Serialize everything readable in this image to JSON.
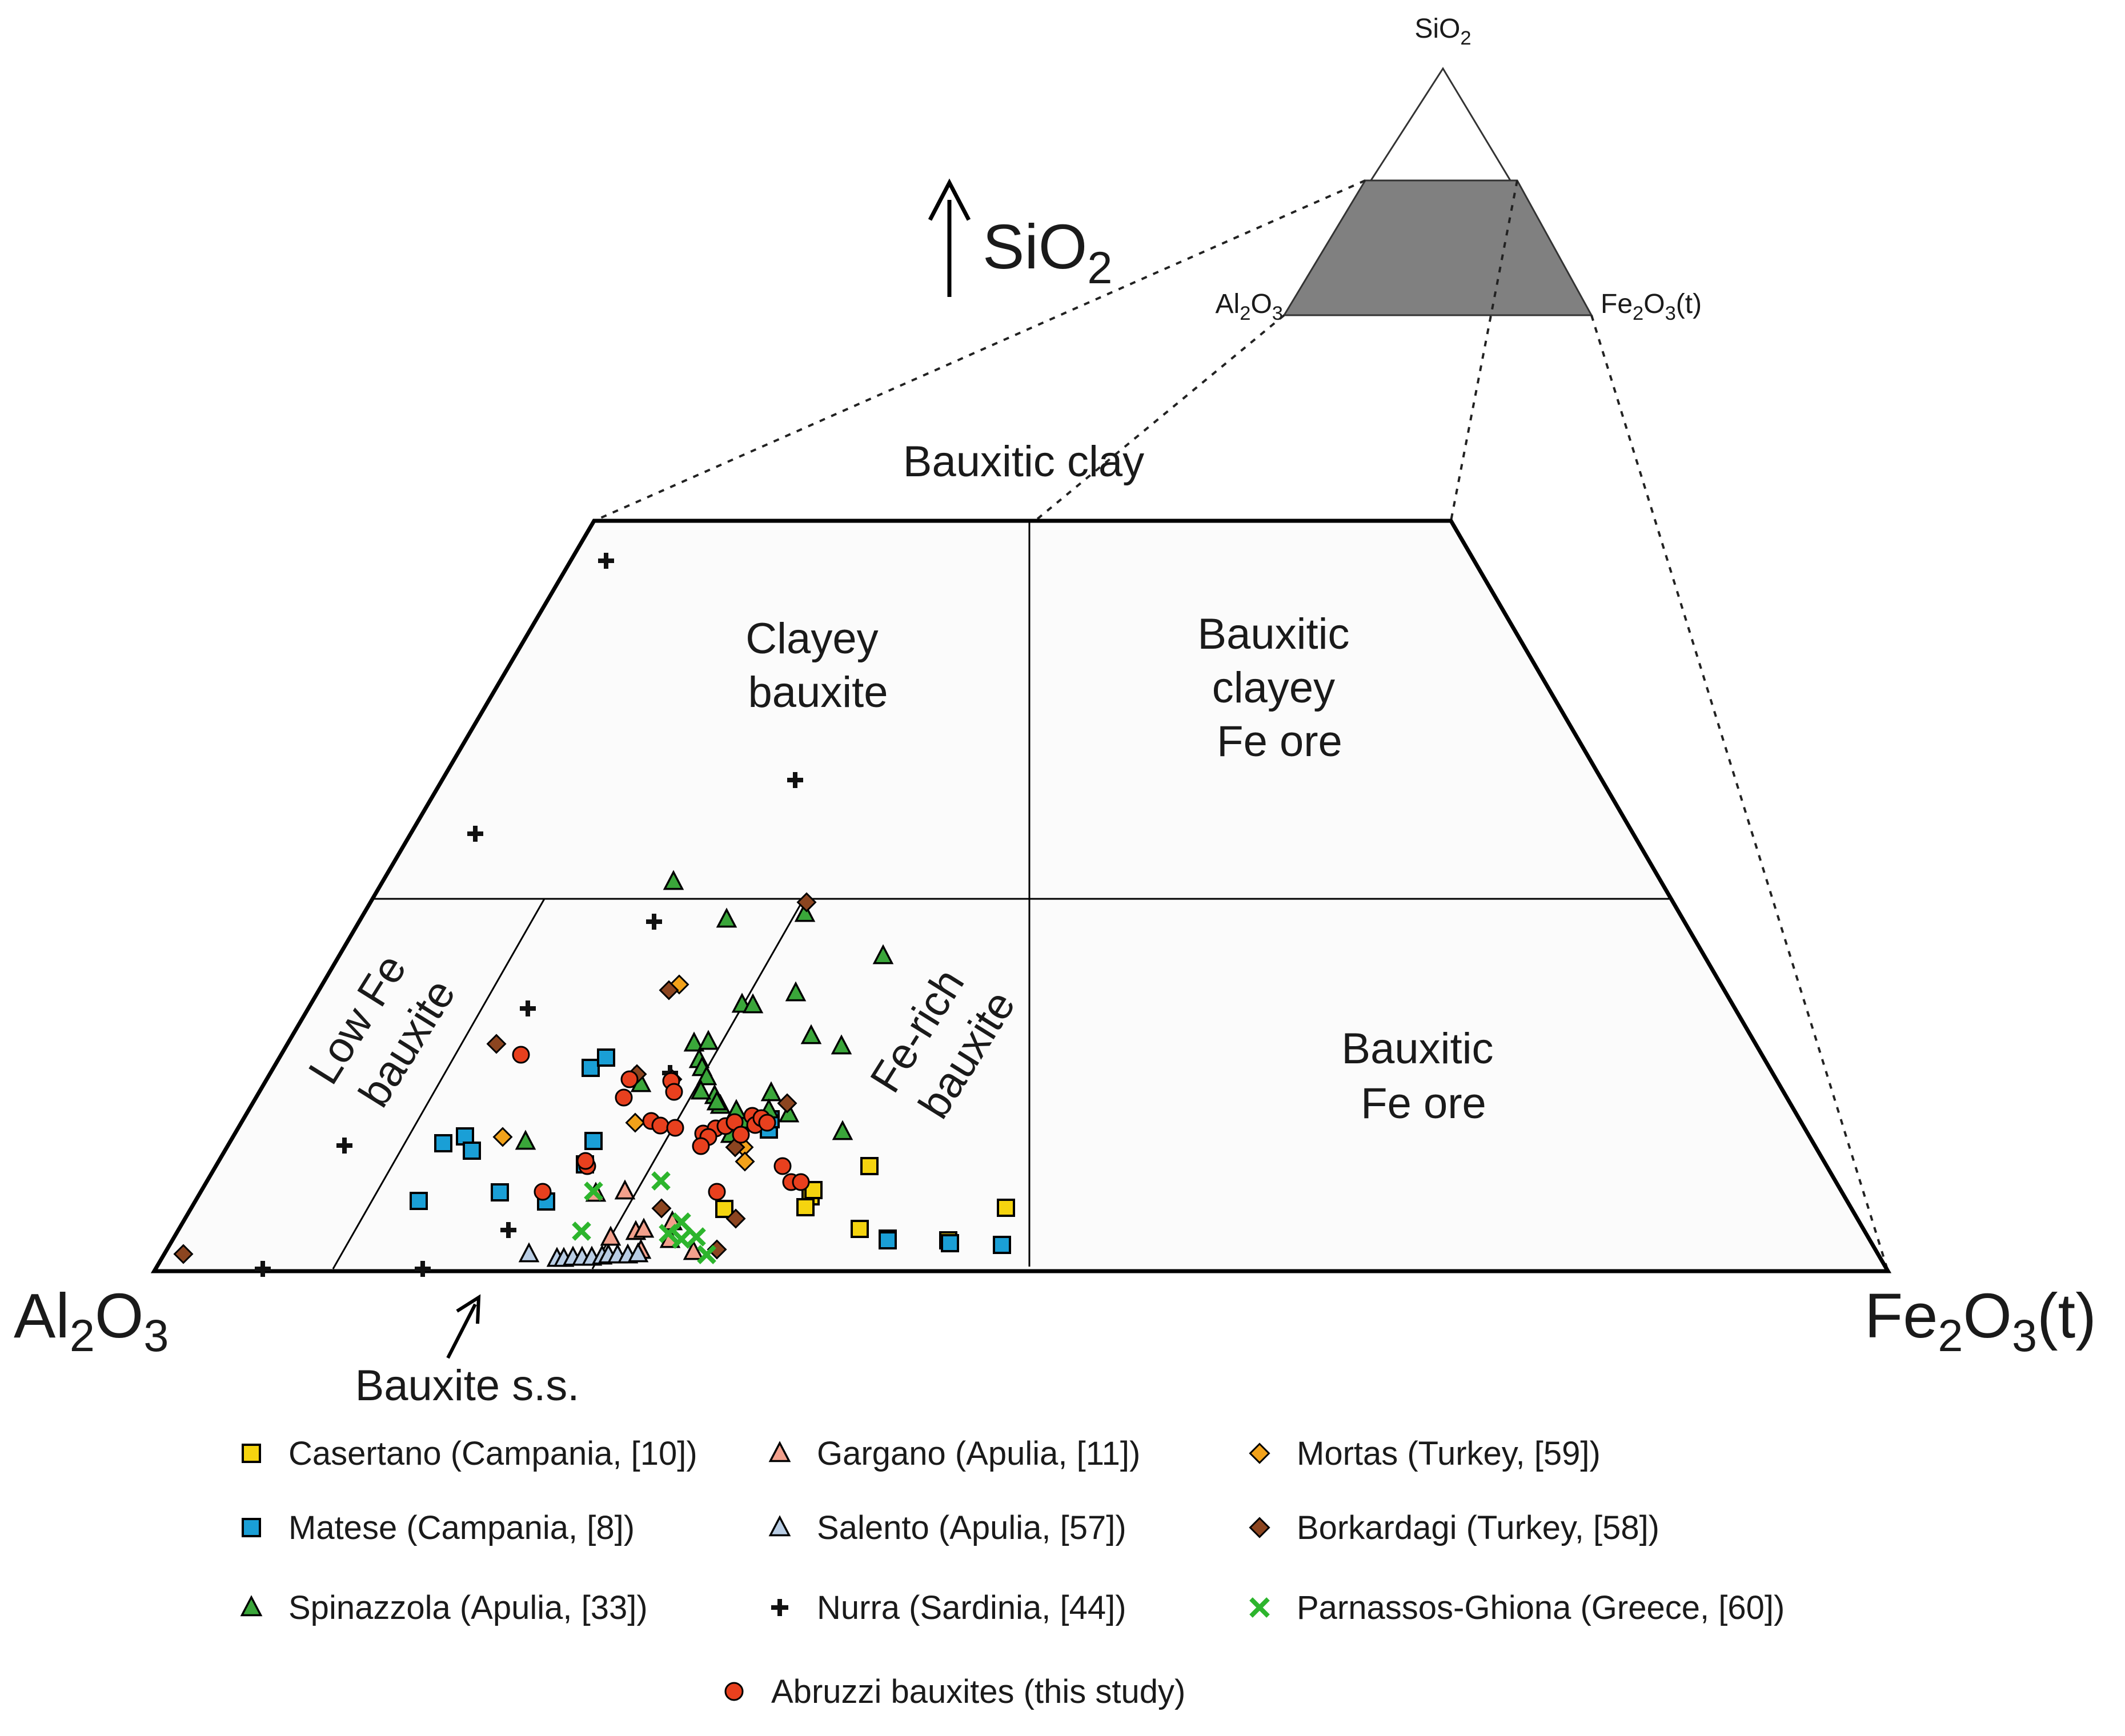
{
  "chart_data": {
    "type": "scatter",
    "diagram": "ternary",
    "projection": "upper portion of the SiO2-Al2O3-Fe2O3(t) triangle truncated at the top (SiO2 enlarged toward the apex)",
    "corners": {
      "left": {
        "base": "Al",
        "sub1": "2",
        "mid": "O",
        "sub2": "3",
        "suffix": ""
      },
      "right": {
        "base": "Fe",
        "sub1": "2",
        "mid": "O",
        "sub2": "3",
        "suffix": "(t)"
      },
      "apex": {
        "base": "SiO",
        "sub1": "2",
        "mid": "",
        "sub2": "",
        "suffix": ""
      }
    },
    "axis_arrow_label": {
      "base": "SiO",
      "sub": "2"
    },
    "regions": [
      {
        "id": "bauxitic-clay",
        "lines": [
          "Bauxitic clay"
        ]
      },
      {
        "id": "clayey-bauxite",
        "lines": [
          "Clayey",
          "bauxite"
        ]
      },
      {
        "id": "bauxitic-clayey-fe-ore",
        "lines": [
          "Bauxitic",
          "clayey",
          "Fe ore"
        ]
      },
      {
        "id": "low-fe-bauxite",
        "lines": [
          "Low Fe",
          "bauxite"
        ]
      },
      {
        "id": "fe-rich-bauxite",
        "lines": [
          "Fe-rich",
          "bauxite"
        ]
      },
      {
        "id": "bauxitic-fe-ore",
        "lines": [
          "Bauxitic",
          "Fe ore"
        ]
      },
      {
        "id": "bauxite-ss",
        "lines": [
          "Bauxite s.s."
        ]
      }
    ],
    "series": [
      {
        "name": "Casertano (Campania, [10])",
        "marker": "square",
        "color": "#f5d40f",
        "points": [
          [
            1522,
            2042
          ],
          [
            1761,
            2115
          ],
          [
            1268,
            2117
          ],
          [
            1419,
            2095
          ],
          [
            1410,
            2114
          ],
          [
            1424,
            2084
          ],
          [
            1505,
            2152
          ],
          [
            1554,
            2169
          ],
          [
            1660,
            2172
          ]
        ]
      },
      {
        "name": "Matese (Campania, [8])",
        "marker": "square",
        "color": "#1a9fd6",
        "points": [
          [
            776,
            2002
          ],
          [
            814,
            1990
          ],
          [
            826,
            2015
          ],
          [
            1034,
            1870
          ],
          [
            1061,
            1852
          ],
          [
            1039,
            1998
          ],
          [
            1024,
            2039
          ],
          [
            875,
            2088
          ],
          [
            956,
            2104
          ],
          [
            733,
            2103
          ],
          [
            1346,
            1978
          ],
          [
            1349,
            1960
          ],
          [
            1554,
            2172
          ],
          [
            1663,
            2177
          ],
          [
            1754,
            2180
          ]
        ]
      },
      {
        "name": "Spinazzola (Apulia, [33])",
        "marker": "triangle",
        "color": "#3aa63a",
        "points": [
          [
            1179,
            1544
          ],
          [
            1272,
            1610
          ],
          [
            1409,
            1600
          ],
          [
            1546,
            1674
          ],
          [
            1299,
            1759
          ],
          [
            1318,
            1760
          ],
          [
            1393,
            1739
          ],
          [
            1420,
            1814
          ],
          [
            1473,
            1832
          ],
          [
            1215,
            1827
          ],
          [
            1240,
            1824
          ],
          [
            1224,
            1856
          ],
          [
            1229,
            1870
          ],
          [
            1237,
            1886
          ],
          [
            1251,
            1919
          ],
          [
            1261,
            1936
          ],
          [
            1110,
            1888
          ],
          [
            1122,
            1898
          ],
          [
            1279,
            1987
          ],
          [
            1350,
            1914
          ],
          [
            1346,
            1944
          ],
          [
            1381,
            1951
          ],
          [
            1475,
            1982
          ],
          [
            1307,
            1962
          ],
          [
            1289,
            1945
          ],
          [
            920,
            1999
          ],
          [
            1255,
            1930
          ],
          [
            1227,
            1911
          ]
        ]
      },
      {
        "name": "Gargano (Apulia, [11])",
        "marker": "triangle",
        "color": "#f2a08c",
        "points": [
          [
            1043,
            2090
          ],
          [
            1094,
            2086
          ],
          [
            1069,
            2167
          ],
          [
            1113,
            2157
          ],
          [
            1127,
            2153
          ],
          [
            1177,
            2140
          ],
          [
            1173,
            2171
          ],
          [
            1122,
            2190
          ],
          [
            1214,
            2192
          ]
        ]
      },
      {
        "name": "Salento (Apulia, [57])",
        "marker": "triangle",
        "color": "#b9cde4",
        "points": [
          [
            926,
            2196
          ],
          [
            975,
            2204
          ],
          [
            987,
            2204
          ],
          [
            1003,
            2202
          ],
          [
            1019,
            2202
          ],
          [
            1036,
            2202
          ],
          [
            1054,
            2200
          ],
          [
            1065,
            2198
          ],
          [
            1081,
            2198
          ],
          [
            1099,
            2198
          ],
          [
            1117,
            2196
          ]
        ]
      },
      {
        "name": "Nurra (Sardinia, [44])",
        "marker": "plus",
        "color": "#111111",
        "points": [
          [
            1061,
            982
          ],
          [
            1392,
            1366
          ],
          [
            832,
            1460
          ],
          [
            1145,
            1614
          ],
          [
            924,
            1766
          ],
          [
            1173,
            1879
          ],
          [
            603,
            2006
          ],
          [
            890,
            2154
          ],
          [
            460,
            2222
          ],
          [
            740,
            2222
          ]
        ]
      },
      {
        "name": "Mortas (Turkey, [59])",
        "marker": "diamond",
        "color": "#f2a21a",
        "points": [
          [
            1189,
            1724
          ],
          [
            880,
            1991
          ],
          [
            1112,
            1966
          ],
          [
            1302,
            2009
          ],
          [
            1304,
            2034
          ]
        ]
      },
      {
        "name": "Borkardagi (Turkey, [58])",
        "marker": "diamond",
        "color": "#8c4520",
        "points": [
          [
            1412,
            1580
          ],
          [
            1171,
            1734
          ],
          [
            869,
            1828
          ],
          [
            1115,
            1881
          ],
          [
            1177,
            1890
          ],
          [
            1378,
            1932
          ],
          [
            1287,
            2009
          ],
          [
            1158,
            2116
          ],
          [
            1288,
            2134
          ],
          [
            321,
            2196
          ],
          [
            1255,
            2188
          ]
        ]
      },
      {
        "name": "Parnassos-Ghiona (Greece, [60])",
        "marker": "x",
        "color": "#2db52d",
        "points": [
          [
            1157,
            2068
          ],
          [
            1039,
            2086
          ],
          [
            1018,
            2156
          ],
          [
            1170,
            2160
          ],
          [
            1193,
            2140
          ],
          [
            1193,
            2170
          ],
          [
            1219,
            2166
          ],
          [
            1237,
            2197
          ]
        ]
      },
      {
        "name": "Abruzzi bauxites (this study)",
        "marker": "circle",
        "color": "#e8401e",
        "points": [
          [
            912,
            1847
          ],
          [
            1092,
            1922
          ],
          [
            1102,
            1890
          ],
          [
            1175,
            1893
          ],
          [
            1180,
            1912
          ],
          [
            1140,
            1963
          ],
          [
            1156,
            1971
          ],
          [
            1182,
            1975
          ],
          [
            1231,
            1985
          ],
          [
            1253,
            1976
          ],
          [
            1270,
            1972
          ],
          [
            1286,
            1965
          ],
          [
            1297,
            1987
          ],
          [
            1317,
            1954
          ],
          [
            1322,
            1970
          ],
          [
            1333,
            1958
          ],
          [
            1343,
            1966
          ],
          [
            1240,
            1991
          ],
          [
            1227,
            2007
          ],
          [
            1028,
            2042
          ],
          [
            1025,
            2033
          ],
          [
            950,
            2087
          ],
          [
            1255,
            2087
          ],
          [
            1370,
            2042
          ],
          [
            1385,
            2070
          ],
          [
            1402,
            2070
          ]
        ]
      }
    ]
  }
}
